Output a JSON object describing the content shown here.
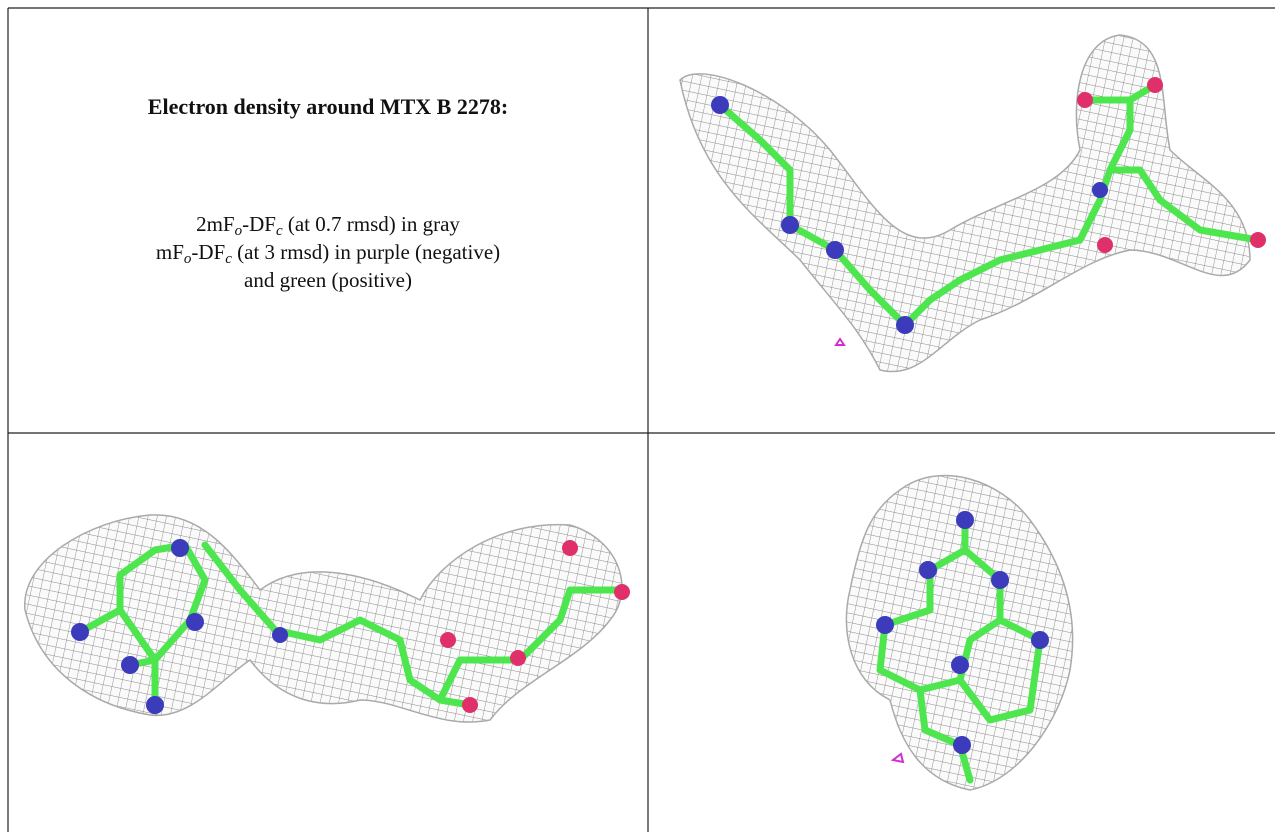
{
  "title": "Electron density around MTX B 2278:",
  "lines": [
    [
      {
        "text": "2mF"
      },
      {
        "text": "o",
        "sub": true
      },
      {
        "text": "-DF"
      },
      {
        "text": "c",
        "sub": true
      },
      {
        "text": " (at 0.7 rmsd) in gray"
      }
    ],
    [
      {
        "text": "mF"
      },
      {
        "text": "o",
        "sub": true
      },
      {
        "text": "-DF"
      },
      {
        "text": "c",
        "sub": true
      },
      {
        "text": " (at 3 rmsd) in purple (negative)"
      }
    ],
    [
      {
        "text": "and green (positive)"
      }
    ]
  ]
}
